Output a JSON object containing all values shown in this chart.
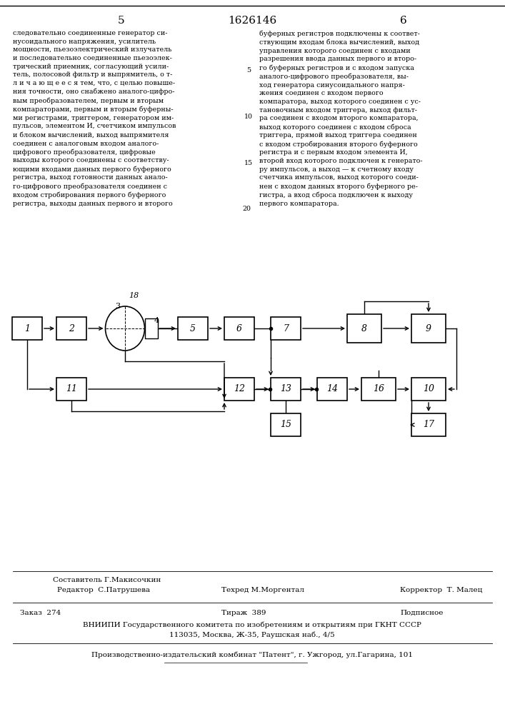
{
  "page_number_left": "5",
  "page_number_center": "1626146",
  "page_number_right": "6",
  "bg_color": "#ffffff",
  "text_color": "#000000",
  "font_size_text": 6.8,
  "footer_line1_left": "Редактор  С.Патрушева",
  "footer_line1_center_top": "Составитель Г.Макисочкин",
  "footer_line1_center": "Техред М.Моргентал",
  "footer_line1_right": "Корректор  Т. Малец",
  "footer_line2_left": "Заказ  274",
  "footer_line2_center": "Тираж  389",
  "footer_line2_right": "Подписное",
  "footer_line3": "ВНИИПИ Государственного комитета по изобретениям и открытиям при ГКНТ СССР",
  "footer_line4": "113035, Москва, Ж-35, Раушская наб., 4/5",
  "footer_line5": "Производственно-издательский комбинат \"Патент\", г. Ужгород, ул.Гагарина, 101"
}
